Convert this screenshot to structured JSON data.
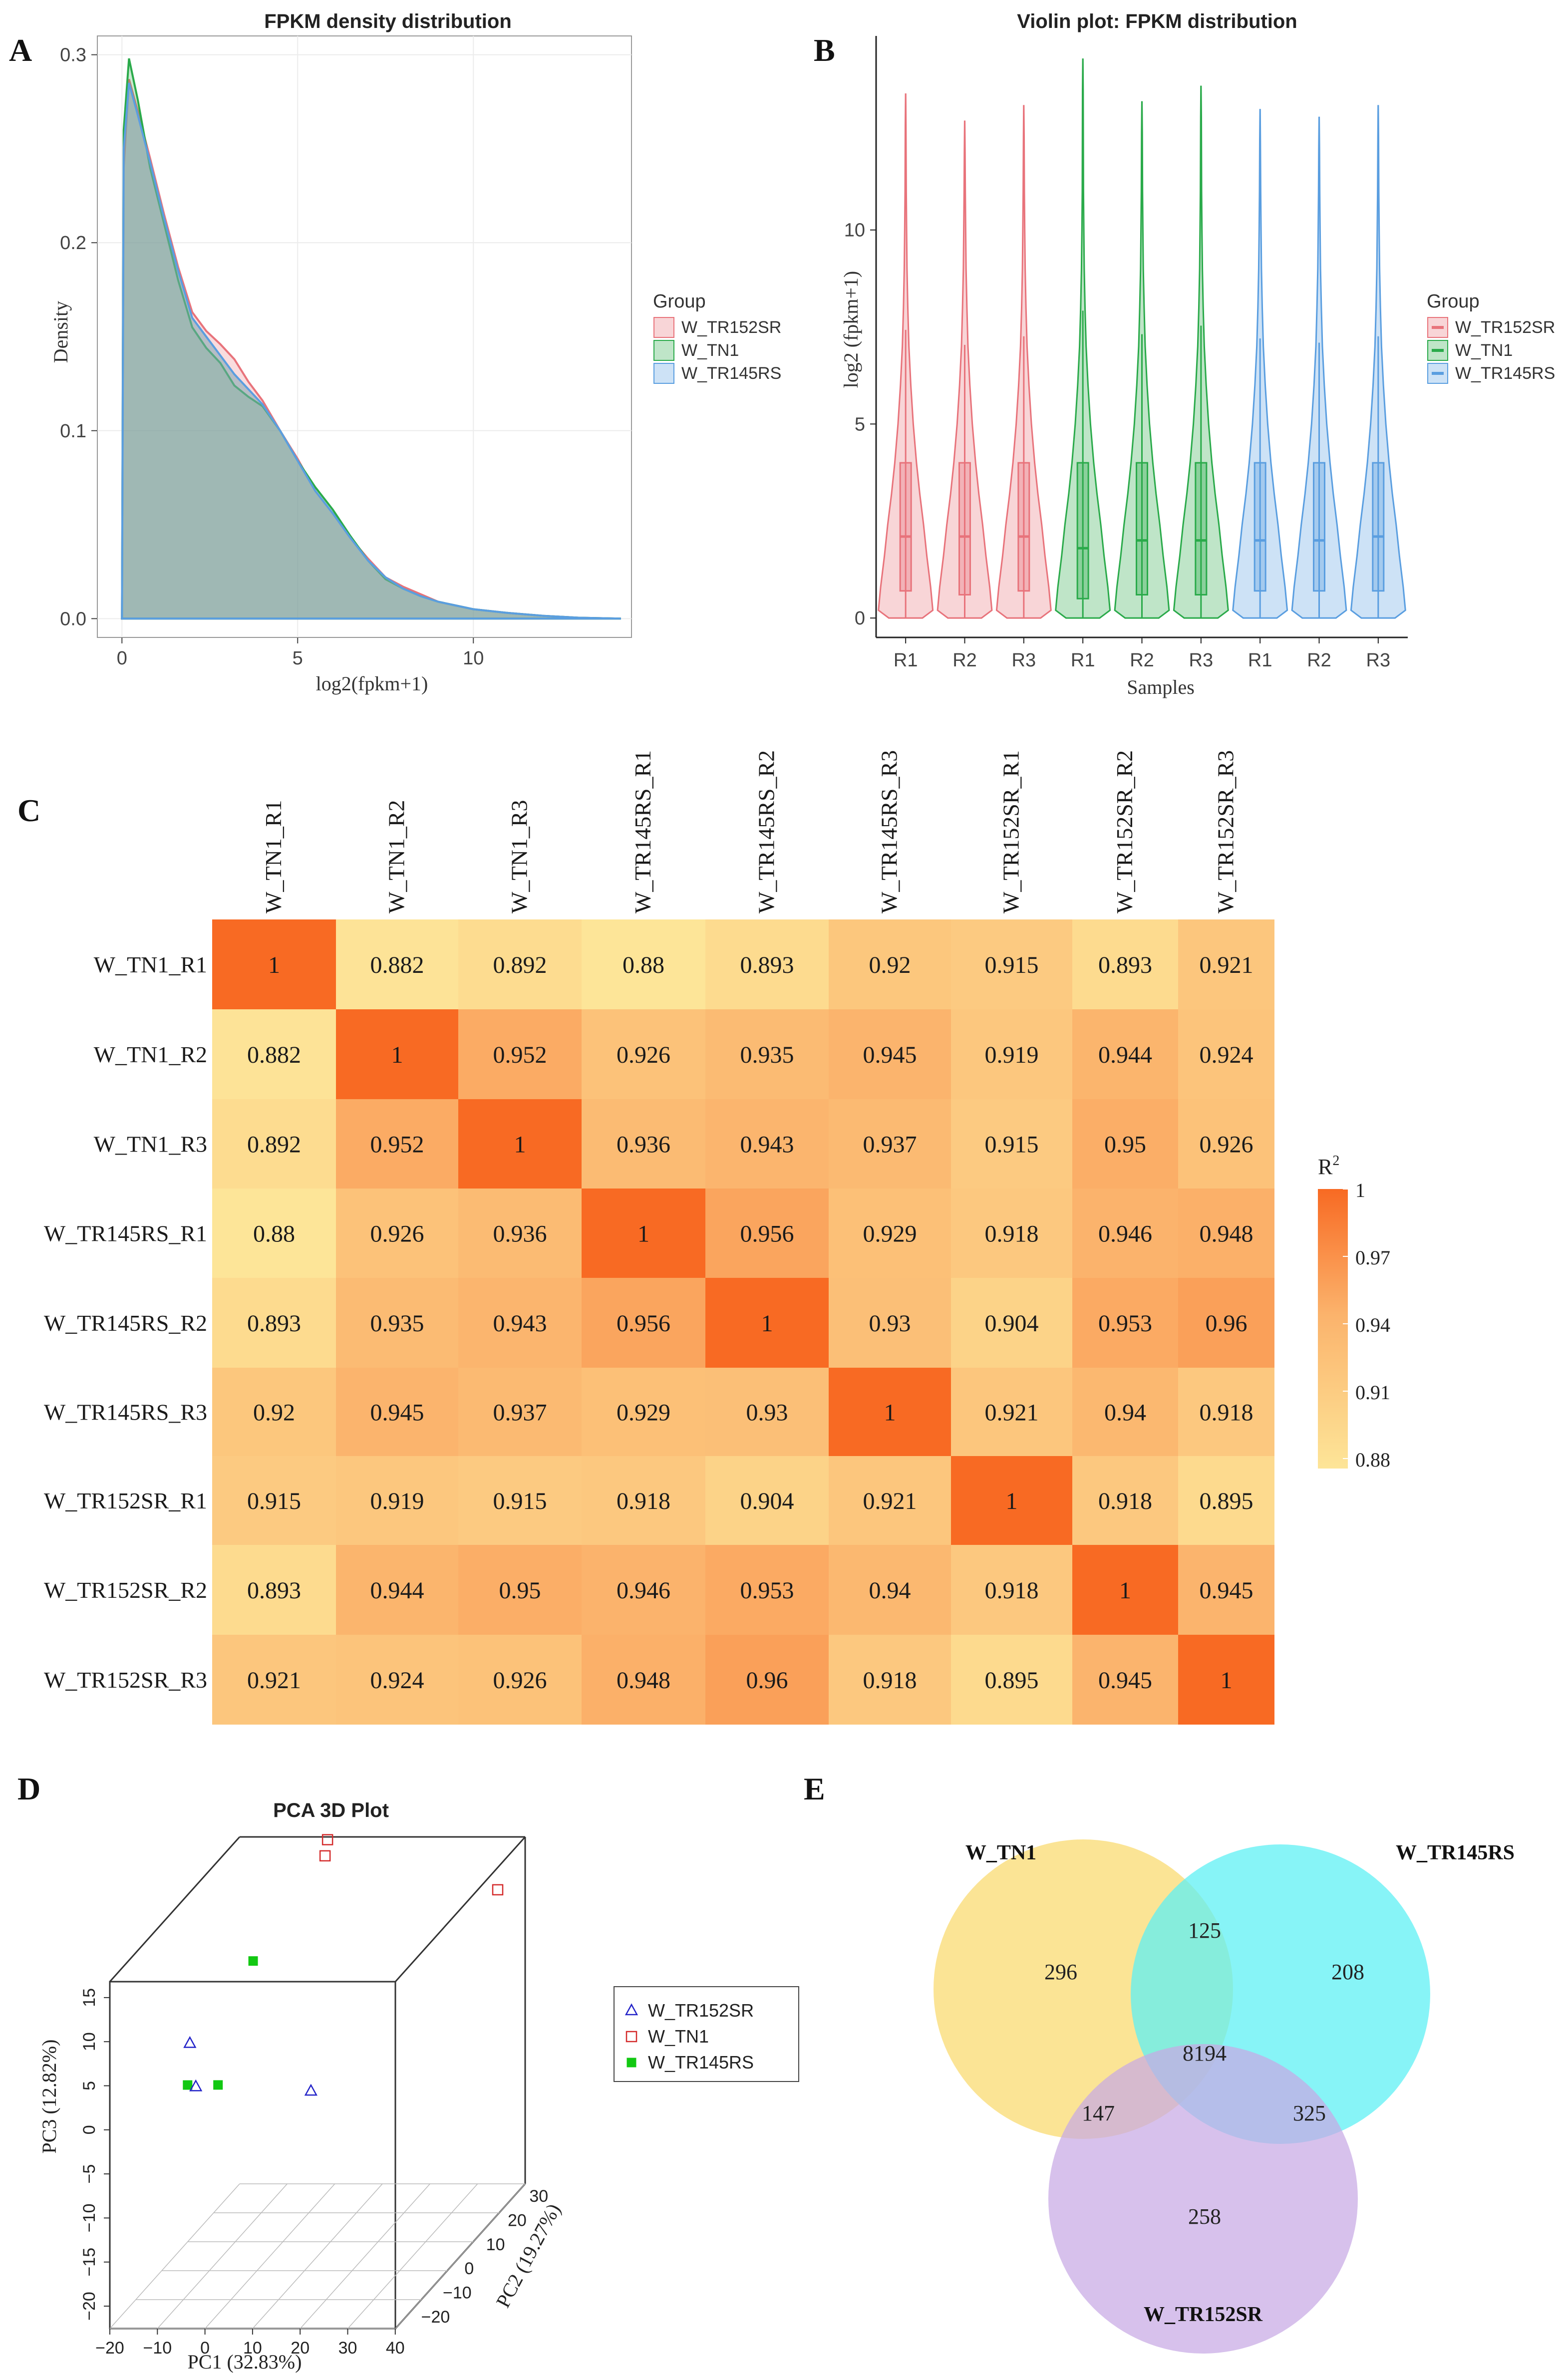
{
  "panel_letters": [
    "A",
    "B",
    "C",
    "D",
    "E"
  ],
  "colors": {
    "tr152sr": "#e8737b",
    "tn1": "#2aaa4a",
    "tr145rs": "#5a9ee0",
    "heat_low": "#fde598",
    "heat_mid": "#fbb36c",
    "heat_high": "#f86a23",
    "venn_tn1": "#fbe189",
    "venn_tr145rs": "#5ff0f4",
    "venn_tr152sr": "#c8a9e4"
  },
  "chart_data": [
    {
      "panel": "A",
      "type": "area",
      "title": "FPKM density distribution",
      "xlabel": "log2(fpkm+1)",
      "ylabel": "Density",
      "xlim": [
        -0.7,
        14.5
      ],
      "ylim": [
        -0.01,
        0.31
      ],
      "xticks": [
        0,
        5,
        10
      ],
      "xtick_labels": [
        "0",
        "5",
        "10"
      ],
      "yticks": [
        0.0,
        0.1,
        0.2,
        0.3
      ],
      "ytick_labels": [
        "0.0",
        "0.1",
        "0.2",
        "0.3"
      ],
      "legend_title": "Group",
      "legend_position": "right",
      "series": [
        {
          "name": "W_TR152SR",
          "color_key": "tr152sr",
          "x": [
            0,
            0.05,
            0.2,
            0.45,
            0.8,
            1.2,
            1.6,
            2.0,
            2.4,
            2.8,
            3.2,
            3.6,
            4.0,
            4.5,
            5.0,
            5.5,
            6.0,
            6.5,
            7.0,
            7.5,
            8.0,
            8.5,
            9.0,
            9.5,
            10.0,
            11.0,
            12.0,
            13.0,
            14.2
          ],
          "y": [
            0,
            0.24,
            0.287,
            0.27,
            0.245,
            0.215,
            0.187,
            0.163,
            0.153,
            0.146,
            0.138,
            0.126,
            0.116,
            0.1,
            0.085,
            0.068,
            0.056,
            0.043,
            0.032,
            0.022,
            0.017,
            0.013,
            0.009,
            0.007,
            0.005,
            0.003,
            0.0015,
            0.0005,
            0
          ]
        },
        {
          "name": "W_TN1",
          "color_key": "tn1",
          "x": [
            0,
            0.05,
            0.2,
            0.45,
            0.8,
            1.2,
            1.6,
            2.0,
            2.4,
            2.8,
            3.2,
            3.6,
            4.0,
            4.5,
            5.0,
            5.5,
            6.0,
            6.5,
            7.0,
            7.5,
            8.0,
            8.5,
            9.0,
            9.5,
            10.0,
            11.0,
            12.0,
            13.0,
            14.2
          ],
          "y": [
            0,
            0.26,
            0.298,
            0.276,
            0.24,
            0.21,
            0.18,
            0.155,
            0.144,
            0.136,
            0.124,
            0.118,
            0.113,
            0.1,
            0.084,
            0.07,
            0.058,
            0.044,
            0.031,
            0.021,
            0.016,
            0.012,
            0.009,
            0.007,
            0.005,
            0.003,
            0.0015,
            0.0005,
            0
          ]
        },
        {
          "name": "W_TR145RS",
          "color_key": "tr145rs",
          "x": [
            0,
            0.05,
            0.2,
            0.45,
            0.8,
            1.2,
            1.6,
            2.0,
            2.4,
            2.8,
            3.2,
            3.6,
            4.0,
            4.5,
            5.0,
            5.5,
            6.0,
            6.5,
            7.0,
            7.5,
            8.0,
            8.5,
            9.0,
            9.5,
            10.0,
            11.0,
            12.0,
            13.0,
            14.2
          ],
          "y": [
            0,
            0.25,
            0.285,
            0.268,
            0.243,
            0.213,
            0.185,
            0.16,
            0.15,
            0.14,
            0.13,
            0.122,
            0.114,
            0.1,
            0.084,
            0.068,
            0.056,
            0.043,
            0.031,
            0.022,
            0.016,
            0.012,
            0.009,
            0.007,
            0.005,
            0.003,
            0.0015,
            0.0005,
            0
          ]
        }
      ]
    },
    {
      "panel": "B",
      "type": "violin",
      "title": "Violin plot: FPKM distribution",
      "xlabel": "Samples",
      "ylabel": "log2 (fpkm+1)",
      "ylim": [
        -0.5,
        15
      ],
      "yticks": [
        0,
        5,
        10
      ],
      "ytick_labels": [
        "0",
        "5",
        "10"
      ],
      "legend_title": "Group",
      "legend_position": "right",
      "violins": [
        {
          "label": "R1",
          "group": "W_TR152SR",
          "color_key": "tr152sr",
          "max": 13.5,
          "q1": 0.7,
          "median": 2.1,
          "q3": 4.0
        },
        {
          "label": "R2",
          "group": "W_TR152SR",
          "color_key": "tr152sr",
          "max": 12.8,
          "q1": 0.6,
          "median": 2.1,
          "q3": 4.0
        },
        {
          "label": "R3",
          "group": "W_TR152SR",
          "color_key": "tr152sr",
          "max": 13.2,
          "q1": 0.7,
          "median": 2.1,
          "q3": 4.0
        },
        {
          "label": "R1",
          "group": "W_TN1",
          "color_key": "tn1",
          "max": 14.4,
          "q1": 0.5,
          "median": 1.8,
          "q3": 4.0
        },
        {
          "label": "R2",
          "group": "W_TN1",
          "color_key": "tn1",
          "max": 13.3,
          "q1": 0.6,
          "median": 2.0,
          "q3": 4.0
        },
        {
          "label": "R3",
          "group": "W_TN1",
          "color_key": "tn1",
          "max": 13.7,
          "q1": 0.6,
          "median": 2.0,
          "q3": 4.0
        },
        {
          "label": "R1",
          "group": "W_TR145RS",
          "color_key": "tr145rs",
          "max": 13.1,
          "q1": 0.7,
          "median": 2.0,
          "q3": 4.0
        },
        {
          "label": "R2",
          "group": "W_TR145RS",
          "color_key": "tr145rs",
          "max": 12.9,
          "q1": 0.7,
          "median": 2.0,
          "q3": 4.0
        },
        {
          "label": "R3",
          "group": "W_TR145RS",
          "color_key": "tr145rs",
          "max": 13.2,
          "q1": 0.7,
          "median": 2.1,
          "q3": 4.0
        }
      ]
    },
    {
      "panel": "C",
      "type": "heatmap",
      "labels": [
        "W_TN1_R1",
        "W_TN1_R2",
        "W_TN1_R3",
        "W_TR145RS_R1",
        "W_TR145RS_R2",
        "W_TR145RS_R3",
        "W_TR152SR_R1",
        "W_TR152SR_R2",
        "W_TR152SR_R3"
      ],
      "values": [
        [
          "1",
          "0.882",
          "0.892",
          "0.88",
          "0.893",
          "0.92",
          "0.915",
          "0.893",
          "0.921"
        ],
        [
          "0.882",
          "1",
          "0.952",
          "0.926",
          "0.935",
          "0.945",
          "0.919",
          "0.944",
          "0.924"
        ],
        [
          "0.892",
          "0.952",
          "1",
          "0.936",
          "0.943",
          "0.937",
          "0.915",
          "0.95",
          "0.926"
        ],
        [
          "0.88",
          "0.926",
          "0.936",
          "1",
          "0.956",
          "0.929",
          "0.918",
          "0.946",
          "0.948"
        ],
        [
          "0.893",
          "0.935",
          "0.943",
          "0.956",
          "1",
          "0.93",
          "0.904",
          "0.953",
          "0.96"
        ],
        [
          "0.92",
          "0.945",
          "0.937",
          "0.929",
          "0.93",
          "1",
          "0.921",
          "0.94",
          "0.918"
        ],
        [
          "0.915",
          "0.919",
          "0.915",
          "0.918",
          "0.904",
          "0.921",
          "1",
          "0.918",
          "0.895"
        ],
        [
          "0.893",
          "0.944",
          "0.95",
          "0.946",
          "0.953",
          "0.94",
          "0.918",
          "1",
          "0.945"
        ],
        [
          "0.921",
          "0.924",
          "0.926",
          "0.948",
          "0.96",
          "0.918",
          "0.895",
          "0.945",
          "1"
        ]
      ],
      "legend_title": "R2",
      "legend_ticks": [
        "1",
        "0.97",
        "0.94",
        "0.91",
        "0.88"
      ],
      "scale_range": [
        0.88,
        1
      ]
    },
    {
      "panel": "D",
      "type": "scatter3d",
      "title": "PCA 3D Plot",
      "xlabel": "PC1 (32.83%)",
      "ylabel": "PC2 (19.27%)",
      "zlabel": "PC3 (12.82%)",
      "xticks": [
        "−20",
        "−10",
        "0",
        "10",
        "20",
        "30",
        "40"
      ],
      "yticks": [
        "−20",
        "−10",
        "0",
        "10",
        "20",
        "30"
      ],
      "zticks": [
        "−20",
        "−15",
        "−10",
        "−5",
        "0",
        "5",
        "10",
        "15"
      ],
      "legend": [
        {
          "name": "W_TR152SR",
          "marker": "triangle",
          "color": "#2323c8"
        },
        {
          "name": "W_TN1",
          "marker": "square-open",
          "color": "#d42b2b"
        },
        {
          "name": "W_TR145RS",
          "marker": "square-filled",
          "color": "#12c812"
        }
      ],
      "points": [
        {
          "group": "W_TN1",
          "pc1": -1,
          "pc2": 29,
          "pc3": 17
        },
        {
          "group": "W_TN1",
          "pc1": -1,
          "pc2": 28,
          "pc3": 15.5
        },
        {
          "group": "W_TN1",
          "pc1": 40,
          "pc2": 19,
          "pc3": 14.5
        },
        {
          "group": "W_TR145RS",
          "pc1": -3,
          "pc2": 3,
          "pc3": 11.5
        },
        {
          "group": "W_TR145RS",
          "pc1": -11,
          "pc2": -8,
          "pc3": 1
        },
        {
          "group": "W_TR145RS",
          "pc1": -13,
          "pc2": 8,
          "pc3": -4
        },
        {
          "group": "W_TR152SR",
          "pc1": -10,
          "pc2": -9,
          "pc3": 6
        },
        {
          "group": "W_TR152SR",
          "pc1": -14,
          "pc2": 1,
          "pc3": -2
        },
        {
          "group": "W_TR152SR",
          "pc1": 6,
          "pc2": 9,
          "pc3": -5
        }
      ]
    },
    {
      "panel": "E",
      "type": "venn",
      "sets": [
        "W_TN1",
        "W_TR145RS",
        "W_TR152SR"
      ],
      "regions": {
        "tn1_only": "296",
        "tr145rs_only": "208",
        "tr152sr_only": "258",
        "tn1_tr145rs": "125",
        "tn1_tr152sr": "147",
        "tr145rs_tr152sr": "325",
        "all": "8194"
      }
    }
  ]
}
